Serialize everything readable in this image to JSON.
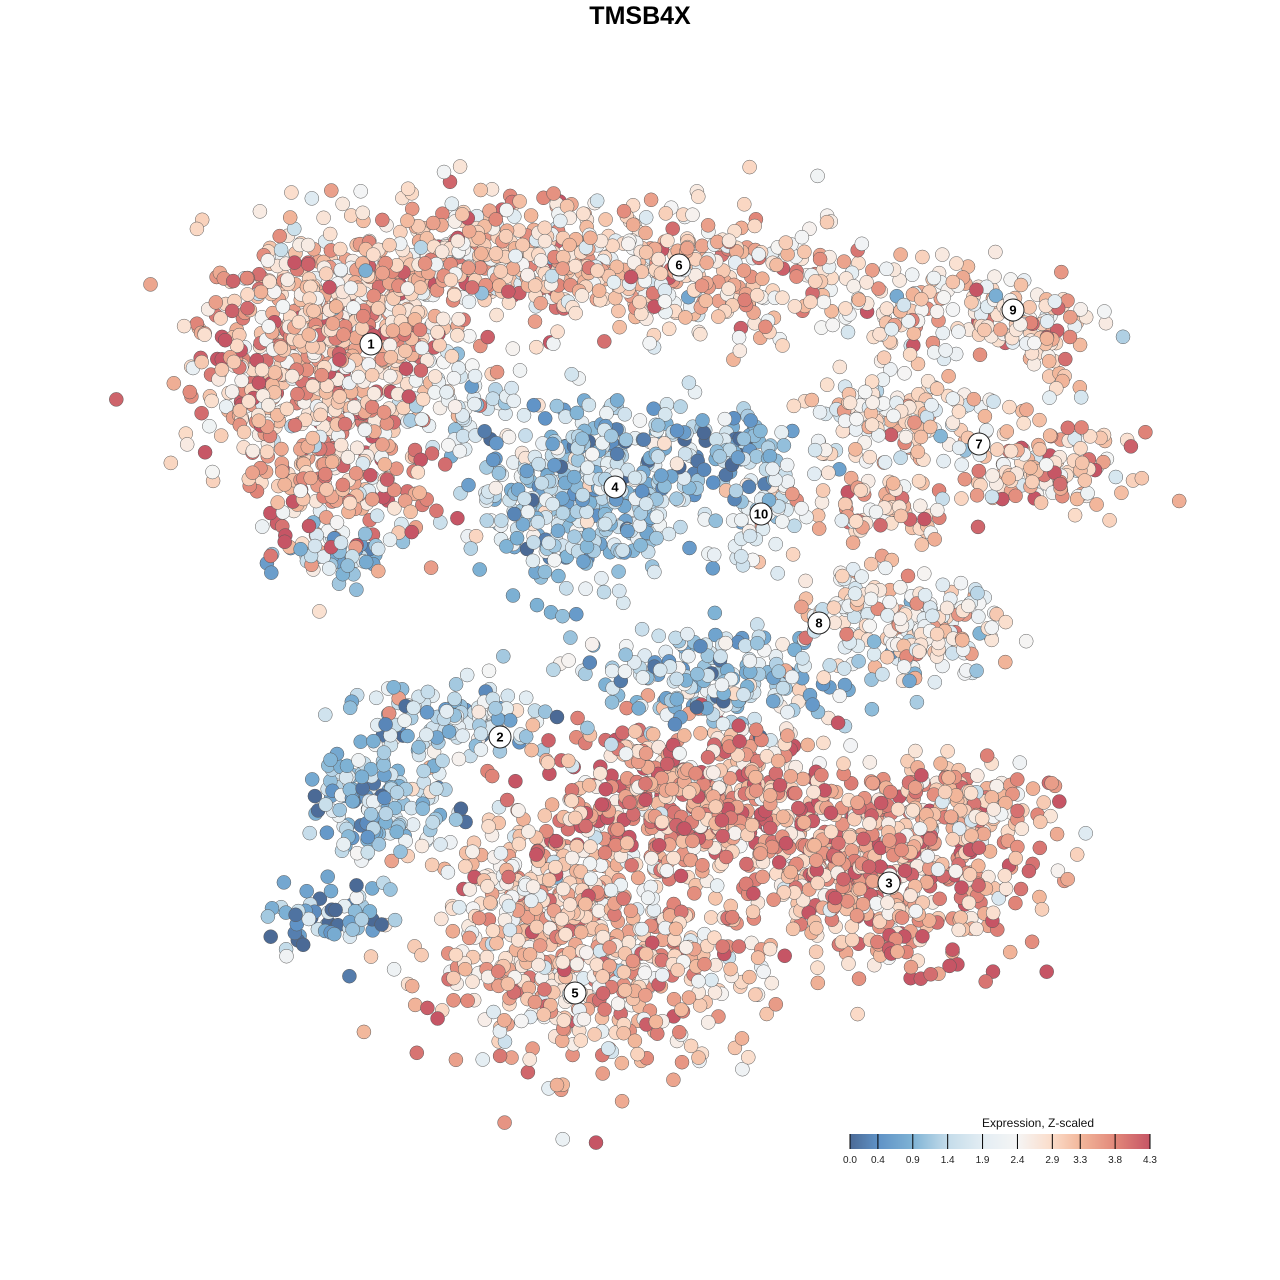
{
  "chart_data": {
    "type": "scatter",
    "title": "TMSB4X",
    "xlabel": "",
    "ylabel": "",
    "xlim": [
      -45,
      50
    ],
    "ylim": [
      -46,
      46
    ],
    "grid": false,
    "legend": {
      "title": "Expression, Z-scaled",
      "placement": "bottom-right",
      "range": [
        0.0,
        4.3
      ],
      "ticks": [
        "0.0",
        "0.4",
        "0.9",
        "1.4",
        "1.9",
        "2.4",
        "2.9",
        "3.3",
        "3.8",
        "4.3"
      ],
      "colors": [
        "#4b6a96",
        "#5f92c6",
        "#7fb3d5",
        "#c4dcea",
        "#e3edf3",
        "#f5f5f5",
        "#fbdcc9",
        "#f2b79b",
        "#e2887a",
        "#c65565"
      ]
    },
    "cluster_labels": [
      {
        "label": "1",
        "x": -26.9,
        "y": 29.6
      },
      {
        "label": "2",
        "x": -14.0,
        "y": -9.7
      },
      {
        "label": "3",
        "x": 24.9,
        "y": -24.3
      },
      {
        "label": "4",
        "x": -2.5,
        "y": 15.3
      },
      {
        "label": "5",
        "x": -6.5,
        "y": -35.3
      },
      {
        "label": "6",
        "x": 3.9,
        "y": 37.5
      },
      {
        "label": "7",
        "x": 33.9,
        "y": 19.6
      },
      {
        "label": "8",
        "x": 17.9,
        "y": 1.7
      },
      {
        "label": "9",
        "x": 37.3,
        "y": 33.0
      },
      {
        "label": "10",
        "x": 12.1,
        "y": 12.6
      }
    ],
    "point_groups_note": "cells: [center_x, center_y, spread_x, spread_y, n_cells, mean_expression]",
    "point_groups": [
      [
        -31,
        31,
        7,
        5,
        500,
        3.2
      ],
      [
        -30,
        17,
        5,
        5,
        250,
        3.3
      ],
      [
        -39,
        24,
        3,
        4,
        80,
        3.2
      ],
      [
        -29,
        8.5,
        3.5,
        1.5,
        50,
        1.0
      ],
      [
        -14,
        38,
        11,
        3.5,
        450,
        3.0
      ],
      [
        8,
        36,
        9,
        3.5,
        250,
        2.9
      ],
      [
        -18,
        25,
        4,
        3,
        60,
        2.2
      ],
      [
        33,
        33,
        7,
        2.5,
        150,
        2.8
      ],
      [
        41,
        28,
        1.5,
        3,
        30,
        3.0
      ],
      [
        26,
        22,
        6,
        2.5,
        150,
        2.6
      ],
      [
        41,
        17,
        4.5,
        2,
        120,
        3.1
      ],
      [
        24,
        13,
        4,
        2.5,
        80,
        3.0
      ],
      [
        -5.5,
        15,
        6,
        5,
        450,
        1.3
      ],
      [
        9,
        19.5,
        4,
        2,
        80,
        0.8
      ],
      [
        12,
        13,
        2.5,
        3,
        60,
        1.8
      ],
      [
        28,
        1,
        4.5,
        3,
        150,
        2.5
      ],
      [
        21,
        4,
        3,
        2,
        50,
        2.6
      ],
      [
        8,
        -4,
        8,
        3,
        200,
        1.3
      ],
      [
        -19,
        -8,
        6,
        2,
        120,
        1.4
      ],
      [
        -26,
        -16,
        4,
        3,
        150,
        1.2
      ],
      [
        4,
        -16,
        9,
        4.5,
        500,
        3.5
      ],
      [
        24,
        -23,
        8,
        5,
        500,
        3.5
      ],
      [
        32,
        -17,
        5,
        2.5,
        120,
        3.0
      ],
      [
        -5,
        -32,
        9,
        6,
        550,
        3.1
      ],
      [
        -10,
        -24,
        5,
        3,
        150,
        2.9
      ],
      [
        -31,
        -28,
        3.5,
        2,
        60,
        0.8
      ]
    ]
  }
}
